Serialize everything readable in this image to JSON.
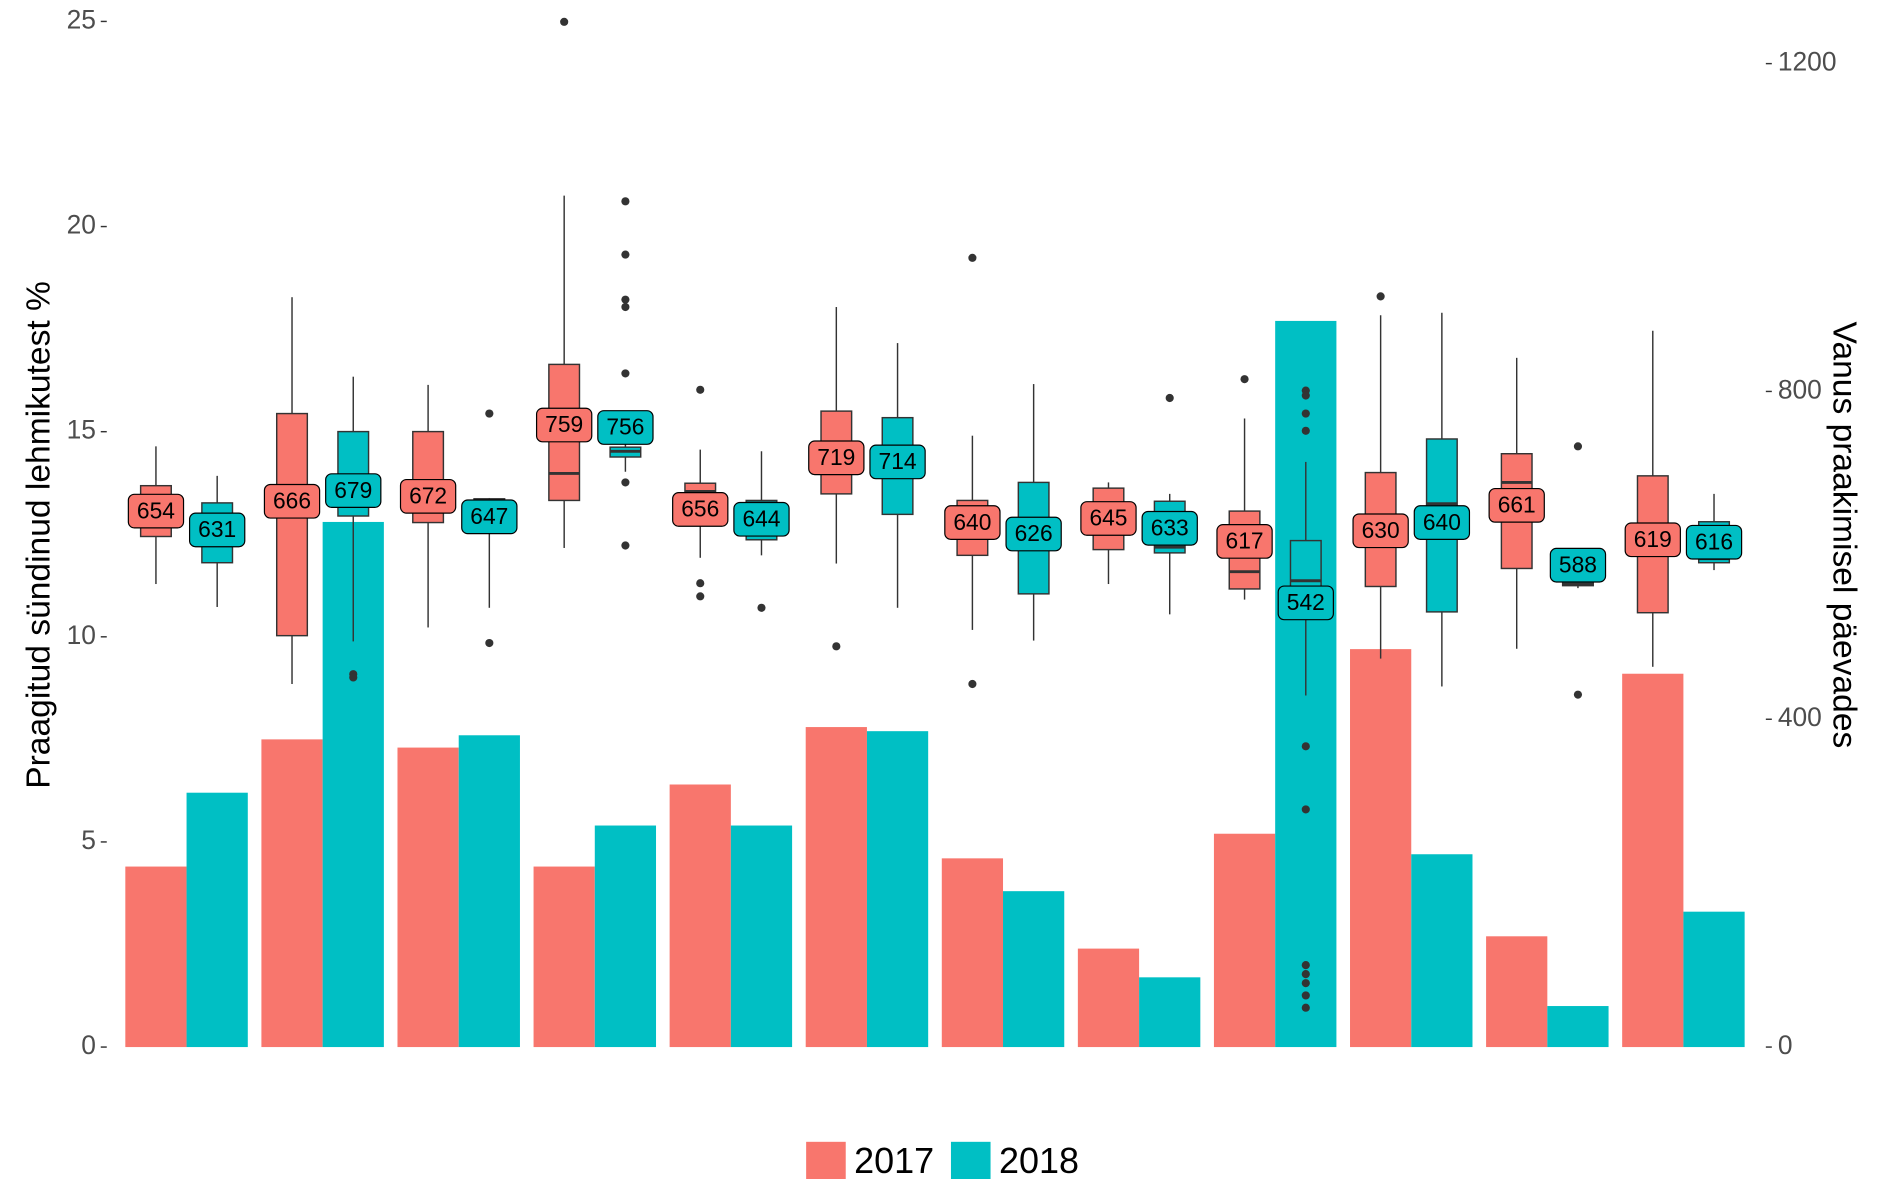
{
  "chart_data": {
    "type": "bar",
    "ylabel": "Praagitud sündinud lehmikutest %",
    "y2label": "Vanus praakimisel päevades",
    "categories": [
      null,
      null,
      null,
      null,
      null,
      null,
      null,
      null,
      null,
      null,
      null,
      null
    ],
    "ylim": [
      0,
      25.23
    ],
    "yticks": [
      0,
      5,
      10,
      15,
      20,
      25
    ],
    "y2lim": [
      0,
      1263
    ],
    "y2ticks": [
      0,
      400,
      800,
      1200
    ],
    "legend": "bottom",
    "series": [
      {
        "name": "2017",
        "color": "#f8766d",
        "values": [
          4.4,
          7.5,
          7.3,
          4.4,
          6.4,
          7.8,
          4.6,
          2.4,
          5.2,
          9.7,
          2.7,
          9.1
        ],
        "box_labels": [
          654,
          666,
          672,
          759,
          656,
          719,
          640,
          645,
          617,
          630,
          661,
          619
        ],
        "boxes": [
          {
            "low": 565,
            "q1": 623,
            "median": 650,
            "q3": 685,
            "high": 733,
            "outliers": []
          },
          {
            "low": 443,
            "q1": 502,
            "median": 666,
            "q3": 773,
            "high": 915,
            "outliers": []
          },
          {
            "low": 512,
            "q1": 640,
            "median": 670,
            "q3": 751,
            "high": 808,
            "outliers": []
          },
          {
            "low": 609,
            "q1": 667,
            "median": 700,
            "q3": 833,
            "high": 1039,
            "outliers": [
              1251
            ]
          },
          {
            "low": 597,
            "q1": 637,
            "median": 678,
            "q3": 688,
            "high": 729,
            "outliers": [
              802,
              566,
              550
            ]
          },
          {
            "low": 590,
            "q1": 675,
            "median": 724,
            "q3": 776,
            "high": 903,
            "outliers": [
              489
            ]
          },
          {
            "low": 509,
            "q1": 600,
            "median": 648,
            "q3": 667,
            "high": 746,
            "outliers": [
              963,
              443
            ]
          },
          {
            "low": 565,
            "q1": 607,
            "median": 656,
            "q3": 682,
            "high": 689,
            "outliers": []
          },
          {
            "low": 546,
            "q1": 559,
            "median": 580,
            "q3": 654,
            "high": 767,
            "outliers": [
              815
            ]
          },
          {
            "low": 474,
            "q1": 562,
            "median": 634,
            "q3": 701,
            "high": 893,
            "outliers": [
              916
            ]
          },
          {
            "low": 486,
            "q1": 584,
            "median": 689,
            "q3": 724,
            "high": 841,
            "outliers": []
          },
          {
            "low": 464,
            "q1": 530,
            "median": 616,
            "q3": 697,
            "high": 874,
            "outliers": []
          }
        ]
      },
      {
        "name": "2018",
        "color": "#00bfc4",
        "values": [
          6.2,
          12.8,
          7.6,
          5.4,
          5.4,
          7.7,
          3.8,
          1.7,
          17.7,
          4.7,
          1.0,
          3.3
        ],
        "box_labels": [
          631,
          679,
          647,
          756,
          644,
          714,
          626,
          633,
          542,
          640,
          588,
          616
        ],
        "boxes": [
          {
            "low": 537,
            "q1": 591,
            "median": 648,
            "q3": 664,
            "high": 697,
            "outliers": []
          },
          {
            "low": 495,
            "q1": 648,
            "median": 692,
            "q3": 751,
            "high": 818,
            "outliers": [
              455,
              451
            ]
          },
          {
            "low": 536,
            "q1": 631,
            "median": 656,
            "q3": 669,
            "high": 670,
            "outliers": [
              773,
              493
            ]
          },
          {
            "low": 702,
            "q1": 720,
            "median": 727,
            "q3": 732,
            "high": 760,
            "outliers": [
              1032,
              967,
              912,
              903,
              822,
              689,
              612
            ]
          },
          {
            "low": 600,
            "q1": 619,
            "median": 664,
            "q3": 667,
            "high": 727,
            "outliers": [
              536
            ]
          },
          {
            "low": 536,
            "q1": 650,
            "median": 729,
            "q3": 768,
            "high": 859,
            "outliers": []
          },
          {
            "low": 496,
            "q1": 553,
            "median": 634,
            "q3": 689,
            "high": 809,
            "outliers": []
          },
          {
            "low": 528,
            "q1": 603,
            "median": 610,
            "q3": 666,
            "high": 675,
            "outliers": [
              792
            ]
          },
          {
            "low": 429,
            "q1": 555,
            "median": 569,
            "q3": 618,
            "high": 714,
            "outliers": [
              801,
              795,
              773,
              752,
              367,
              290,
              100,
              89,
              78,
              63,
              48
            ]
          },
          {
            "low": 440,
            "q1": 531,
            "median": 663,
            "q3": 742,
            "high": 896,
            "outliers": []
          },
          {
            "low": 560,
            "q1": 563,
            "median": 565,
            "q3": 572,
            "high": 574,
            "outliers": [
              733,
              430
            ]
          },
          {
            "low": 582,
            "q1": 591,
            "median": 596,
            "q3": 641,
            "high": 675,
            "outliers": []
          }
        ]
      }
    ]
  }
}
